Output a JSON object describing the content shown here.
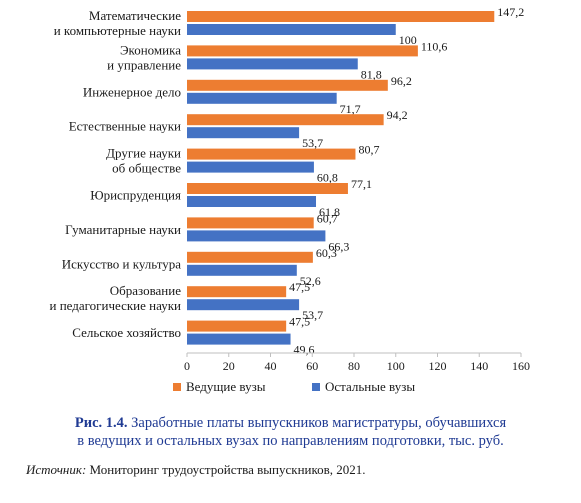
{
  "chart_data": {
    "type": "bar",
    "orientation": "horizontal",
    "categories": [
      [
        "Математические",
        "и компьютерные науки"
      ],
      [
        "Экономика",
        "и управление"
      ],
      [
        "Инженерное дело"
      ],
      [
        "Естественные науки"
      ],
      [
        "Другие науки",
        "об обществе"
      ],
      [
        "Юриспруденция"
      ],
      [
        "Гуманитарные науки"
      ],
      [
        "Искусство и культура"
      ],
      [
        "Образование",
        "и педагогические науки"
      ],
      [
        "Сельское хозяйство"
      ]
    ],
    "series": [
      {
        "name": "Ведущие вузы",
        "color": "#ed7d31",
        "values": [
          147.2,
          110.6,
          96.2,
          94.2,
          80.7,
          77.1,
          60.7,
          60.3,
          47.5,
          47.5
        ],
        "labels": [
          "147,2",
          "110,6",
          "96,2",
          "94,2",
          "80,7",
          "77,1",
          "60,7",
          "60,3",
          "47,5",
          "47,5"
        ]
      },
      {
        "name": "Остальные вузы",
        "color": "#4472c4",
        "values": [
          100,
          81.8,
          71.7,
          53.7,
          60.8,
          61.8,
          66.3,
          52.6,
          53.7,
          49.6
        ],
        "labels": [
          "100",
          "81,8",
          "71,7",
          "53,7",
          "60,8",
          "61,8",
          "66,3",
          "52,6",
          "53,7",
          "49,6"
        ]
      }
    ],
    "xlim": [
      0,
      160
    ],
    "xticks": [
      0,
      20,
      40,
      60,
      80,
      100,
      120,
      140,
      160
    ],
    "grid": false,
    "legend_position": "bottom"
  },
  "caption": {
    "figure_number": "Рис. 1.4.",
    "line1": "Заработные платы выпускников магистратуры, обучавшихся",
    "line2": "в ведущих и остальных вузах по направлениям подготовки, тыс. руб."
  },
  "source": {
    "label": "Источник:",
    "text": "Мониторинг трудоустройства выпускников, 2021."
  }
}
